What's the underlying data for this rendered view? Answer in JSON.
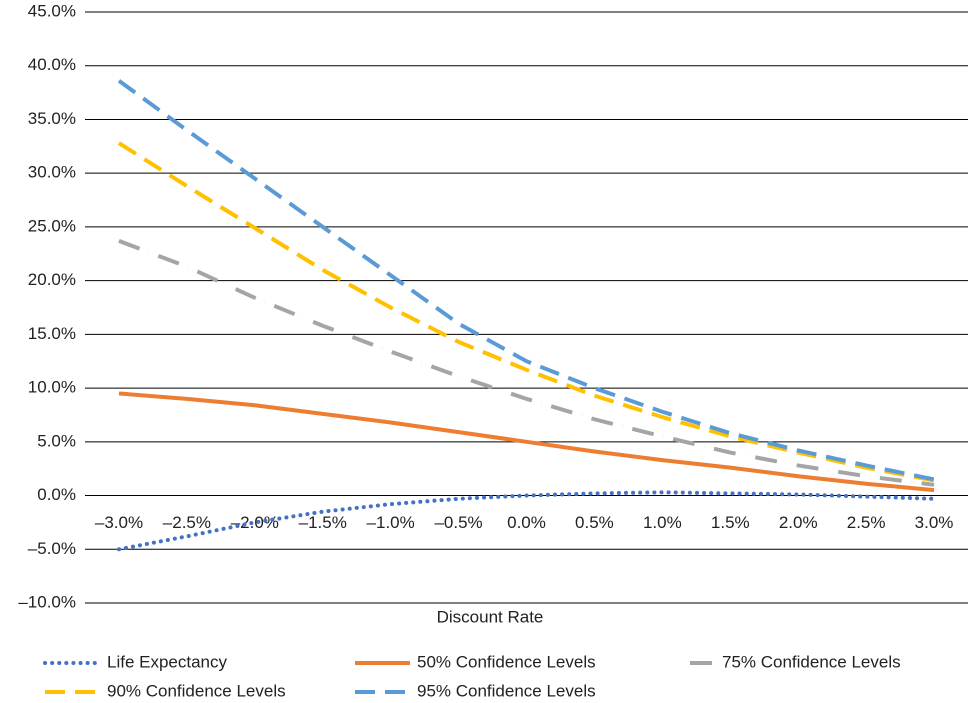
{
  "chart_data": {
    "type": "line",
    "x_label": "Discount Rate",
    "categories": [
      "–3.0%",
      "–2.5%",
      "–2.0%",
      "–1.5%",
      "–1.0%",
      "–0.5%",
      "0.0%",
      "0.5%",
      "1.0%",
      "1.5%",
      "2.0%",
      "2.5%",
      "3.0%"
    ],
    "series": [
      {
        "name": "Life Expectancy",
        "color": "#4472c4",
        "dash": "dot",
        "values": [
          -5.0,
          -3.8,
          -2.5,
          -1.5,
          -0.8,
          -0.3,
          0.0,
          0.2,
          0.3,
          0.2,
          0.1,
          -0.1,
          -0.3
        ]
      },
      {
        "name": "50% Confidence Levels",
        "color": "#ed7d31",
        "dash": "solid",
        "values": [
          9.5,
          9.0,
          8.4,
          7.6,
          6.8,
          5.9,
          5.0,
          4.1,
          3.3,
          2.6,
          1.8,
          1.1,
          0.5
        ]
      },
      {
        "name": "75% Confidence Levels",
        "color": "#a5a5a5",
        "dash": "dashdot",
        "values": [
          23.7,
          21.3,
          18.4,
          15.8,
          13.4,
          11.1,
          9.0,
          7.1,
          5.5,
          4.0,
          2.8,
          1.8,
          1.0
        ]
      },
      {
        "name": "90% Confidence Levels",
        "color": "#ffc000",
        "dash": "dash",
        "values": [
          32.8,
          28.8,
          24.9,
          21.0,
          17.5,
          14.3,
          11.7,
          9.3,
          7.3,
          5.5,
          4.0,
          2.6,
          1.4
        ]
      },
      {
        "name": "95% Confidence Levels",
        "color": "#5b9bd5",
        "dash": "dash",
        "values": [
          38.6,
          34.0,
          29.5,
          25.0,
          20.5,
          16.0,
          12.5,
          10.0,
          7.8,
          5.8,
          4.2,
          2.8,
          1.5
        ]
      }
    ],
    "ylim": [
      -10,
      45
    ],
    "yticks": [
      {
        "value": -10,
        "label": "–10.0%"
      },
      {
        "value": -5,
        "label": "–5.0%"
      },
      {
        "value": 0,
        "label": "0.0%"
      },
      {
        "value": 5,
        "label": "5.0%"
      },
      {
        "value": 10,
        "label": "10.0%"
      },
      {
        "value": 15,
        "label": "15.0%"
      },
      {
        "value": 20,
        "label": "20.0%"
      },
      {
        "value": 25,
        "label": "25.0%"
      },
      {
        "value": 30,
        "label": "30.0%"
      },
      {
        "value": 35,
        "label": "35.0%"
      },
      {
        "value": 40,
        "label": "40.0%"
      },
      {
        "value": 45,
        "label": "45.0%"
      }
    ],
    "grid": true,
    "legend": "bottom"
  }
}
